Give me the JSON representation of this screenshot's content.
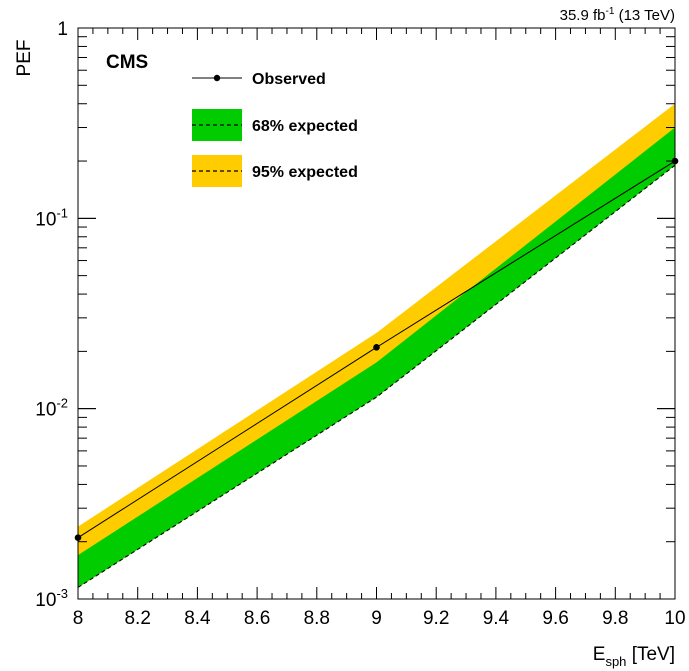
{
  "chart_data": {
    "type": "line",
    "title": "",
    "lumi_label": "35.9 fb",
    "lumi_sup": "-1",
    "energy_label": "(13 TeV)",
    "experiment_label": "CMS",
    "ylabel": "PEF",
    "xlabel_main": "E",
    "xlabel_sub": "sph",
    "xlabel_unit": "[TeV]",
    "xlim": [
      8,
      10
    ],
    "ylim": [
      0.001,
      1
    ],
    "yscale": "log",
    "x_ticks": [
      "8",
      "8.2",
      "8.4",
      "8.6",
      "8.8",
      "9",
      "9.2",
      "9.4",
      "9.6",
      "9.8",
      "10"
    ],
    "y_ticks": [
      {
        "base": "10",
        "exp": "-3"
      },
      {
        "base": "10",
        "exp": "-2"
      },
      {
        "base": "10",
        "exp": "-1"
      },
      {
        "base": "1",
        "exp": ""
      }
    ],
    "legend": {
      "placement": "top-left",
      "observed": "Observed",
      "band68": "68% expected",
      "band95": "95% expected"
    },
    "colors": {
      "band68": "#00cc00",
      "band95": "#ffcc00",
      "line": "#000000"
    },
    "x": [
      8,
      9,
      10
    ],
    "series": [
      {
        "name": "Observed",
        "values": [
          0.0021,
          0.021,
          0.2
        ]
      },
      {
        "name": "68% expected",
        "values": [
          0.00115,
          0.0115,
          0.19
        ]
      },
      {
        "name": "68% expected",
        "values": [
          0.00115,
          0.0115,
          0.19
        ]
      },
      {
        "name": "95% expected",
        "values": [
          0.00115,
          0.0115,
          0.19
        ]
      }
    ],
    "band95_low": [
      0.00115,
      0.0115,
      0.19
    ],
    "band95_high": [
      0.0024,
      0.025,
      0.4
    ],
    "band68_low": [
      0.00115,
      0.0115,
      0.19
    ],
    "band68_high": [
      0.0017,
      0.0175,
      0.3
    ]
  }
}
